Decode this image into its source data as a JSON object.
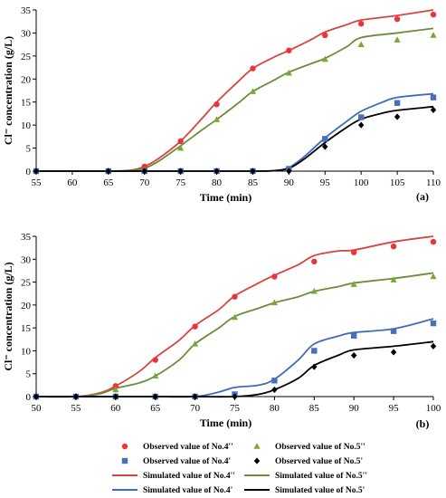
{
  "legend": {
    "items": [
      {
        "label": "Observed value of No.4''",
        "kind": "marker",
        "marker": "circle",
        "color": "#e8343a"
      },
      {
        "label": "Observed value of No.5''",
        "kind": "marker",
        "marker": "triangle",
        "color": "#7aa83a"
      },
      {
        "label": "Observed value of No.4'",
        "kind": "marker",
        "marker": "square",
        "color": "#4a6fb5"
      },
      {
        "label": "Observed value of No.5'",
        "kind": "marker",
        "marker": "diamond",
        "color": "#000000"
      },
      {
        "label": "Simulated value of No.4''",
        "kind": "line",
        "color": "#d9453e"
      },
      {
        "label": "Simulated value of No.5''",
        "kind": "line",
        "color": "#6e8d3a"
      },
      {
        "label": "Simulated value of No.4'",
        "kind": "line",
        "color": "#3f6db8"
      },
      {
        "label": "Simulated value of No.5'",
        "kind": "line",
        "color": "#000000"
      }
    ]
  },
  "chart_data": [
    {
      "type": "scatter",
      "panel_label": "(a)",
      "xlabel": "Time (min)",
      "ylabel": "Cl⁻ concentration (g/L)",
      "xlim": [
        55,
        110
      ],
      "ylim": [
        0,
        35
      ],
      "xticks": [
        55,
        60,
        65,
        70,
        75,
        80,
        85,
        90,
        95,
        100,
        105,
        110
      ],
      "yticks": [
        0,
        5,
        10,
        15,
        20,
        25,
        30,
        35
      ],
      "observed": [
        {
          "name": "Observed value of No.4''",
          "marker": "circle",
          "color": "#e8343a",
          "x": [
            55,
            65,
            70,
            75,
            80,
            85,
            90,
            95,
            100,
            105,
            110
          ],
          "y": [
            0,
            0,
            1.0,
            6.5,
            14.5,
            22.3,
            26.2,
            29.5,
            32.0,
            33.0,
            34.0
          ]
        },
        {
          "name": "Observed value of No.5''",
          "marker": "triangle",
          "color": "#7aa83a",
          "x": [
            55,
            65,
            70,
            75,
            80,
            85,
            90,
            95,
            100,
            105,
            110
          ],
          "y": [
            0,
            0,
            0.3,
            5.0,
            11.2,
            17.3,
            21.3,
            24.3,
            27.5,
            28.5,
            29.5
          ]
        },
        {
          "name": "Observed value of No.4'",
          "marker": "square",
          "color": "#4a6fb5",
          "x": [
            55,
            65,
            70,
            75,
            80,
            85,
            90,
            95,
            100,
            105,
            110
          ],
          "y": [
            0,
            0,
            0,
            0,
            0,
            0,
            0.5,
            7.0,
            11.7,
            14.8,
            16.0
          ]
        },
        {
          "name": "Observed value of No.5'",
          "marker": "diamond",
          "color": "#000000",
          "x": [
            55,
            65,
            70,
            75,
            80,
            85,
            90,
            95,
            100,
            105,
            110
          ],
          "y": [
            0,
            0,
            0,
            0,
            0,
            0,
            0,
            5.3,
            10.0,
            11.8,
            13.3
          ]
        }
      ],
      "simulated": [
        {
          "name": "Simulated value of No.4''",
          "color": "#d9453e",
          "x": [
            55,
            60,
            65,
            68,
            70,
            72,
            75,
            78,
            80,
            83,
            85,
            88,
            90,
            93,
            95,
            98,
            100,
            105,
            110
          ],
          "y": [
            0,
            0,
            0,
            0.2,
            1.0,
            2.8,
            6.5,
            11.5,
            15.0,
            19.5,
            22.3,
            24.8,
            26.2,
            28.5,
            30.2,
            31.8,
            32.8,
            33.8,
            35.0
          ]
        },
        {
          "name": "Simulated value of No.5''",
          "color": "#6e8d3a",
          "x": [
            55,
            60,
            65,
            68,
            70,
            72,
            75,
            78,
            80,
            83,
            85,
            88,
            90,
            93,
            95,
            98,
            100,
            105,
            110
          ],
          "y": [
            0,
            0,
            0,
            0.1,
            0.6,
            2.2,
            5.5,
            9.0,
            11.2,
            14.8,
            17.3,
            19.8,
            21.5,
            23.3,
            24.5,
            27.0,
            29.0,
            30.0,
            31.0
          ]
        },
        {
          "name": "Simulated value of No.4'",
          "color": "#3f6db8",
          "x": [
            55,
            60,
            65,
            70,
            75,
            80,
            85,
            88,
            90,
            92,
            95,
            98,
            100,
            103,
            105,
            110
          ],
          "y": [
            0,
            0,
            0,
            0,
            0,
            0,
            0,
            0.1,
            0.8,
            3.0,
            7.2,
            10.8,
            13.0,
            15.0,
            16.0,
            16.8
          ]
        },
        {
          "name": "Simulated value of No.5'",
          "color": "#000000",
          "x": [
            55,
            60,
            65,
            70,
            75,
            80,
            85,
            88,
            90,
            92,
            95,
            98,
            100,
            103,
            105,
            110
          ],
          "y": [
            0,
            0,
            0,
            0,
            0,
            0,
            0,
            0.1,
            0.6,
            2.5,
            6.2,
            9.5,
            11.3,
            12.6,
            13.2,
            14.0
          ]
        }
      ]
    },
    {
      "type": "scatter",
      "panel_label": "(b)",
      "xlabel": "Time (min)",
      "ylabel": "Cl⁻ concentration (g/L)",
      "xlim": [
        50,
        100
      ],
      "ylim": [
        0,
        35
      ],
      "xticks": [
        50,
        55,
        60,
        65,
        70,
        75,
        80,
        85,
        90,
        95,
        100
      ],
      "yticks": [
        0,
        5,
        10,
        15,
        20,
        25,
        30,
        35
      ],
      "observed": [
        {
          "name": "Observed value of No.4''",
          "marker": "circle",
          "color": "#e8343a",
          "x": [
            50,
            55,
            60,
            65,
            70,
            75,
            80,
            85,
            90,
            95,
            100
          ],
          "y": [
            0,
            0,
            2.3,
            8.0,
            15.3,
            21.8,
            26.2,
            29.5,
            31.5,
            32.8,
            33.8
          ]
        },
        {
          "name": "Observed value of No.5''",
          "marker": "triangle",
          "color": "#7aa83a",
          "x": [
            50,
            55,
            60,
            65,
            70,
            75,
            80,
            85,
            90,
            95,
            100
          ],
          "y": [
            0,
            0,
            1.5,
            4.5,
            11.5,
            17.3,
            20.5,
            23.0,
            24.5,
            25.5,
            26.2
          ]
        },
        {
          "name": "Observed value of No.4'",
          "marker": "square",
          "color": "#4a6fb5",
          "x": [
            50,
            55,
            60,
            65,
            70,
            75,
            80,
            85,
            90,
            95,
            100
          ],
          "y": [
            0,
            0,
            0,
            0,
            0,
            0.5,
            3.5,
            10.0,
            13.3,
            14.3,
            16.0
          ]
        },
        {
          "name": "Observed value of No.5'",
          "marker": "diamond",
          "color": "#000000",
          "x": [
            50,
            55,
            60,
            65,
            70,
            75,
            80,
            85,
            90,
            95,
            100
          ],
          "y": [
            0,
            0,
            0,
            0,
            0,
            0,
            1.5,
            6.5,
            9.0,
            9.7,
            11.0
          ]
        }
      ],
      "simulated": [
        {
          "name": "Simulated value of No.4''",
          "color": "#d9453e",
          "x": [
            50,
            55,
            58,
            60,
            63,
            65,
            68,
            70,
            73,
            75,
            78,
            80,
            83,
            85,
            88,
            90,
            95,
            100
          ],
          "y": [
            0,
            0,
            0.8,
            2.3,
            5.5,
            8.5,
            12.3,
            15.5,
            19.0,
            22.0,
            24.8,
            26.5,
            28.8,
            30.8,
            31.8,
            32.0,
            33.8,
            35.0
          ]
        },
        {
          "name": "Simulated value of No.5''",
          "color": "#6e8d3a",
          "x": [
            50,
            55,
            58,
            60,
            63,
            65,
            68,
            70,
            73,
            75,
            78,
            80,
            83,
            85,
            88,
            90,
            95,
            100
          ],
          "y": [
            0,
            0,
            0.6,
            1.8,
            3.0,
            4.5,
            8.0,
            11.5,
            15.0,
            17.5,
            19.3,
            20.5,
            21.8,
            23.0,
            24.0,
            24.8,
            25.8,
            27.0
          ]
        },
        {
          "name": "Simulated value of No.4'",
          "color": "#3f6db8",
          "x": [
            50,
            55,
            60,
            65,
            70,
            73,
            75,
            78,
            80,
            83,
            85,
            88,
            90,
            95,
            100
          ],
          "y": [
            0,
            0,
            0,
            0,
            0,
            1.0,
            2.0,
            2.5,
            3.8,
            8.0,
            11.5,
            13.2,
            14.0,
            14.8,
            17.0
          ]
        },
        {
          "name": "Simulated value of No.5'",
          "color": "#000000",
          "x": [
            50,
            55,
            60,
            65,
            70,
            75,
            78,
            80,
            83,
            85,
            88,
            90,
            95,
            100
          ],
          "y": [
            0,
            0,
            0,
            0,
            0,
            0,
            0.5,
            1.5,
            4.0,
            6.8,
            9.0,
            10.2,
            11.0,
            12.0
          ]
        }
      ]
    }
  ]
}
